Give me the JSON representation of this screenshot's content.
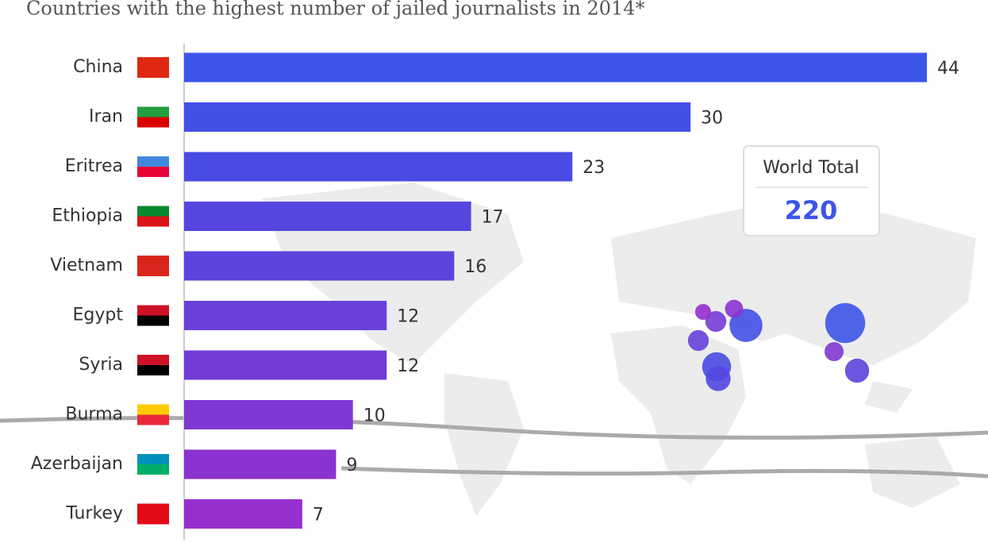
{
  "chart_data": {
    "type": "bar",
    "orientation": "horizontal",
    "title": "Countries with the highest number of jailed journalists in 2014*",
    "categories": [
      "China",
      "Iran",
      "Eritrea",
      "Ethiopia",
      "Vietnam",
      "Egypt",
      "Syria",
      "Burma",
      "Azerbaijan",
      "Turkey"
    ],
    "values": [
      44,
      30,
      23,
      17,
      16,
      12,
      12,
      10,
      9,
      7
    ],
    "colors": [
      "#3d55e8",
      "#4250e6",
      "#4a4be3",
      "#5347e0",
      "#5d43dd",
      "#6940da",
      "#733cd6",
      "#7f38d3",
      "#8a33d0",
      "#952fcd"
    ],
    "world_total": {
      "label": "World Total",
      "value": 220
    }
  }
}
